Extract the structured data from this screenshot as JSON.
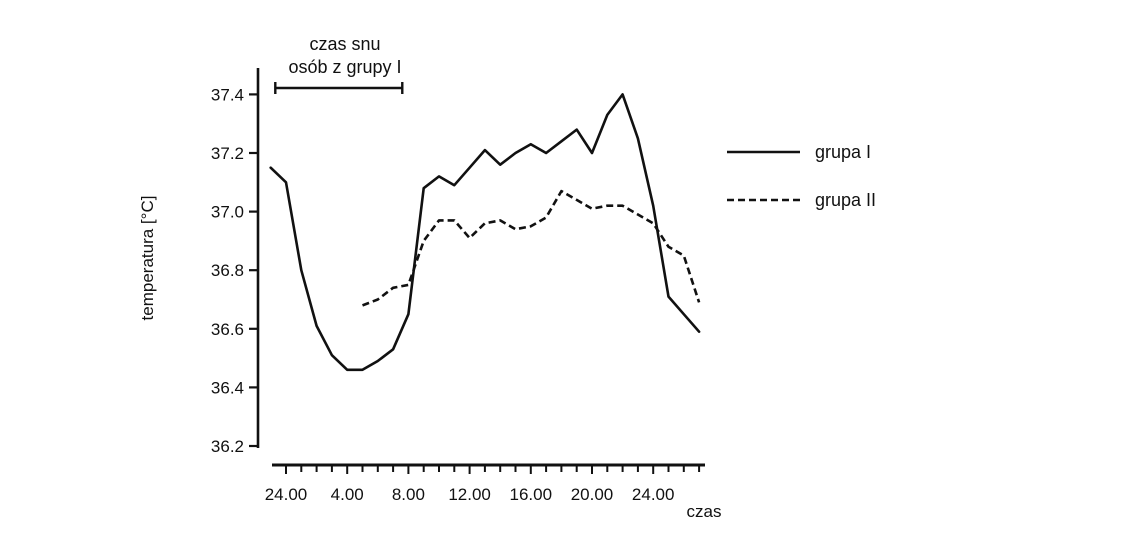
{
  "chart_data": {
    "type": "line",
    "xlabel": "czas",
    "ylabel": "temperatura [°C]",
    "ylim": [
      36.2,
      37.45
    ],
    "y_ticks": [
      "36.2",
      "36.4",
      "36.6",
      "36.8",
      "37.0",
      "37.2",
      "37.4"
    ],
    "x_ticks": [
      "24.00",
      "4.00",
      "8.00",
      "12.00",
      "16.00",
      "20.00",
      "24.00"
    ],
    "x_tick_hours": [
      0,
      4,
      8,
      12,
      16,
      20,
      24
    ],
    "xlim_hours": [
      -0.8,
      28.4
    ],
    "annotation": {
      "lines": [
        "czas snu",
        "osób z grupy I"
      ],
      "start_hour": -0.7,
      "end_hour": 7.6
    },
    "legend_position": "right",
    "series": [
      {
        "name": "grupa I",
        "dash": "solid",
        "hours": [
          -1,
          0,
          1,
          2,
          3,
          4,
          5,
          6,
          7,
          8,
          9,
          10,
          11,
          12,
          13,
          14,
          15,
          16,
          17,
          18,
          19,
          20,
          21,
          22,
          23,
          24,
          25,
          26,
          27
        ],
        "values": [
          37.15,
          37.1,
          36.8,
          36.61,
          36.51,
          36.46,
          36.46,
          36.49,
          36.53,
          36.65,
          37.08,
          37.12,
          37.09,
          37.15,
          37.21,
          37.16,
          37.2,
          37.23,
          37.2,
          37.24,
          37.28,
          37.2,
          37.33,
          37.4,
          37.25,
          37.02,
          36.71,
          36.65,
          36.59
        ]
      },
      {
        "name": "grupa II",
        "dash": "dashed",
        "hours": [
          5,
          6,
          7,
          8,
          9,
          10,
          11,
          12,
          13,
          14,
          15,
          16,
          17,
          18,
          19,
          20,
          21,
          22,
          23,
          24,
          25,
          26,
          27
        ],
        "values": [
          36.68,
          36.7,
          36.74,
          36.75,
          36.9,
          36.97,
          36.97,
          36.91,
          36.96,
          36.97,
          36.94,
          36.95,
          36.98,
          37.07,
          37.04,
          37.01,
          37.02,
          37.02,
          36.99,
          36.96,
          36.88,
          36.85,
          36.69
        ]
      }
    ]
  }
}
